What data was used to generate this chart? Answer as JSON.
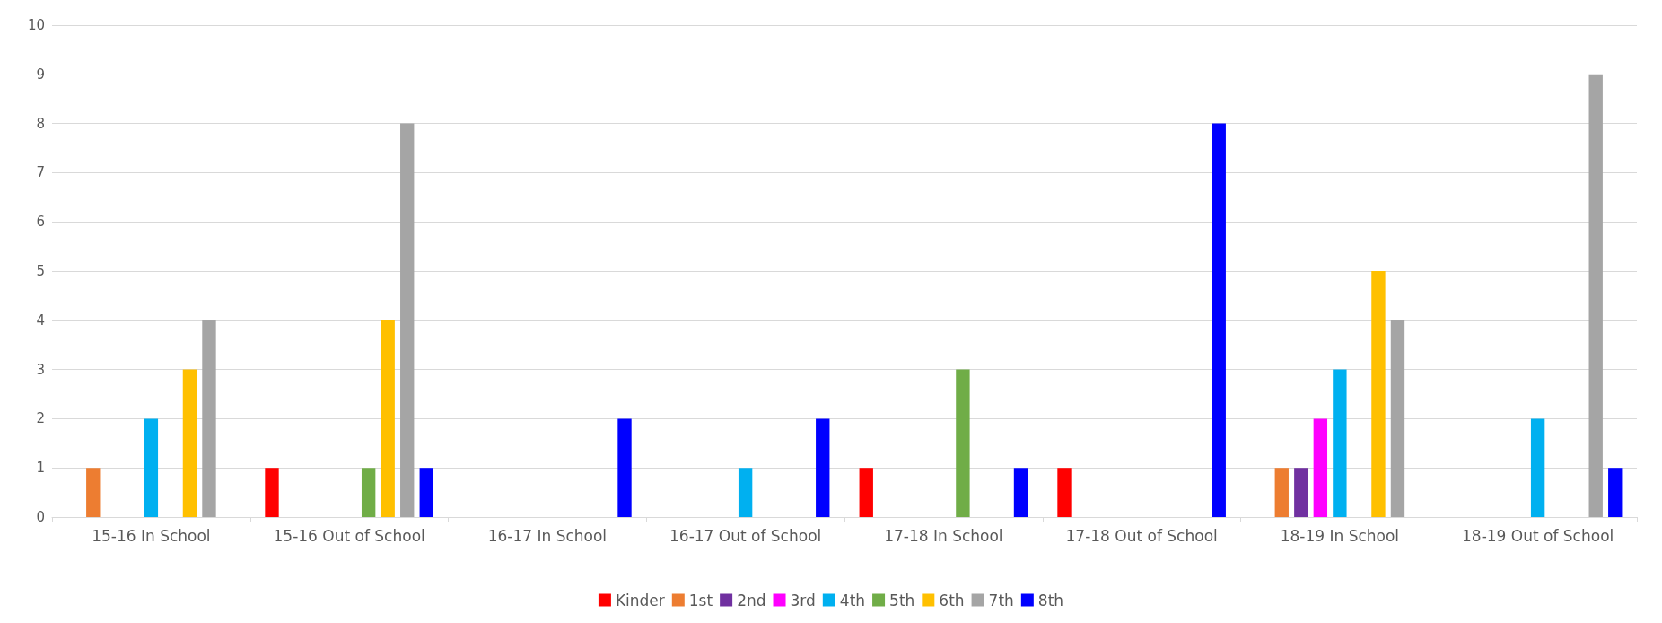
{
  "chart_data": {
    "type": "bar",
    "categories": [
      "15-16 In School",
      "15-16 Out of School",
      "16-17 In School",
      "16-17 Out of School",
      "17-18 In School",
      "17-18 Out of School",
      "18-19 In School",
      "18-19 Out of School"
    ],
    "series": [
      {
        "name": "Kinder",
        "color": "#ff0000",
        "values": [
          0,
          1,
          0,
          0,
          1,
          1,
          0,
          0
        ]
      },
      {
        "name": "1st",
        "color": "#ed7d31",
        "values": [
          1,
          0,
          0,
          0,
          0,
          0,
          1,
          0
        ]
      },
      {
        "name": "2nd",
        "color": "#7030a0",
        "values": [
          0,
          0,
          0,
          0,
          0,
          0,
          1,
          0
        ]
      },
      {
        "name": "3rd",
        "color": "#ff00ff",
        "values": [
          0,
          0,
          0,
          0,
          0,
          0,
          2,
          0
        ]
      },
      {
        "name": "4th",
        "color": "#00b0f0",
        "values": [
          2,
          0,
          0,
          1,
          0,
          0,
          3,
          2
        ]
      },
      {
        "name": "5th",
        "color": "#70ad47",
        "values": [
          0,
          1,
          0,
          0,
          3,
          0,
          0,
          0
        ]
      },
      {
        "name": "6th",
        "color": "#ffc000",
        "values": [
          3,
          4,
          0,
          0,
          0,
          0,
          5,
          0
        ]
      },
      {
        "name": "7th",
        "color": "#a5a5a5",
        "values": [
          4,
          8,
          0,
          0,
          0,
          0,
          4,
          9
        ]
      },
      {
        "name": "8th",
        "color": "#0000ff",
        "values": [
          0,
          1,
          2,
          2,
          1,
          8,
          0,
          1
        ]
      }
    ],
    "ylim": [
      0,
      10
    ],
    "yticks": [
      0,
      1,
      2,
      3,
      4,
      5,
      6,
      7,
      8,
      9,
      10
    ],
    "grid": "y",
    "legend": "bottom"
  }
}
